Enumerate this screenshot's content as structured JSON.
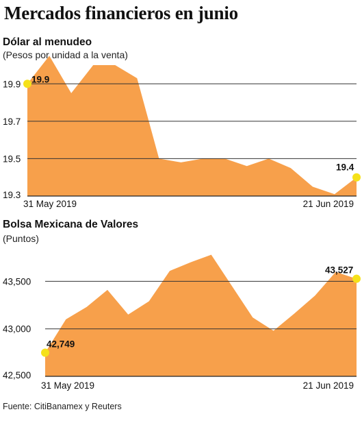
{
  "title": "Mercados financieros en junio",
  "source": "Fuente: CitiBanamex y Reuters",
  "chart_data": [
    {
      "type": "area",
      "title": "Dólar al menudeo",
      "subtitle": "(Pesos por unidad a la venta)",
      "ylim": [
        19.3,
        20.0
      ],
      "yticks": [
        19.3,
        19.5,
        19.7,
        19.9
      ],
      "ytick_labels": [
        "19.3",
        "19.5",
        "19.7",
        "19.9"
      ],
      "x_labels": [
        "31 May 2019",
        "21 Jun 2019"
      ],
      "values": [
        19.9,
        20.05,
        19.85,
        20.0,
        20.0,
        19.93,
        19.5,
        19.48,
        19.5,
        19.5,
        19.46,
        19.5,
        19.45,
        19.35,
        19.31,
        19.4
      ],
      "start_label": "19.9",
      "end_label": "19.4",
      "grid": true,
      "color": "#F7A04B",
      "marker_color": "#F5E11A"
    },
    {
      "type": "area",
      "title": "Bolsa Mexicana de Valores",
      "subtitle": "(Puntos)",
      "ylim": [
        42500,
        43900
      ],
      "yticks": [
        42500,
        43000,
        43500
      ],
      "ytick_labels": [
        "42,500",
        "43,000",
        "43,500"
      ],
      "x_labels": [
        "31 May 2019",
        "21 Jun 2019"
      ],
      "values": [
        42749,
        43100,
        43230,
        43410,
        43150,
        43290,
        43610,
        43700,
        43780,
        43450,
        43120,
        42980,
        43160,
        43350,
        43600,
        43527
      ],
      "start_label": "42,749",
      "end_label": "43,527",
      "grid": true,
      "color": "#F7A04B",
      "marker_color": "#F5E11A"
    }
  ]
}
